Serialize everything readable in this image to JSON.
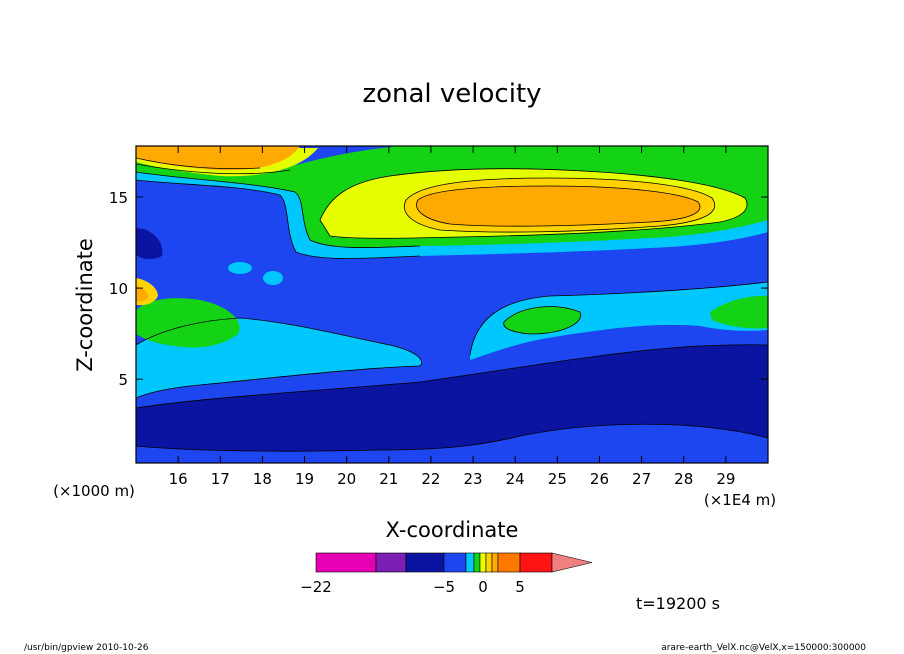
{
  "chart_data": {
    "type": "heatmap",
    "title": "zonal velocity",
    "xlabel": "X-coordinate",
    "ylabel": "Z-coordinate",
    "x_unit": "(×1E4 m)",
    "y_unit": "(×1000 m)",
    "xlim": [
      15.0,
      30.0
    ],
    "ylim": [
      0.4,
      17.8
    ],
    "x_ticks": [
      16,
      17,
      18,
      19,
      20,
      21,
      22,
      23,
      24,
      25,
      26,
      27,
      28,
      29
    ],
    "y_ticks": [
      5,
      10,
      15
    ],
    "x_tick_labels": [
      "16",
      "17",
      "18",
      "19",
      "20",
      "21",
      "22",
      "23",
      "24",
      "25",
      "26",
      "27",
      "28",
      "29"
    ],
    "y_tick_labels": [
      "5",
      "10",
      "15"
    ],
    "colorbar": {
      "ticks": [
        -22,
        -5,
        0,
        5
      ],
      "tick_labels": [
        "−22",
        "−5",
        "0",
        "5"
      ],
      "colors": [
        "#e600b4",
        "#7a1eb4",
        "#0a14a0",
        "#1e46f0",
        "#00c8ff",
        "#14d214",
        "#e6ff00",
        "#ffd200",
        "#ffaa00",
        "#ff7800",
        "#ff1414",
        "#f08080"
      ]
    },
    "annotation": "t=19200 s",
    "grid": false
  },
  "footer": {
    "left": "/usr/bin/gpview   2010-10-26",
    "right": "arare-earth_VelX.nc@VelX,x=150000:300000"
  }
}
